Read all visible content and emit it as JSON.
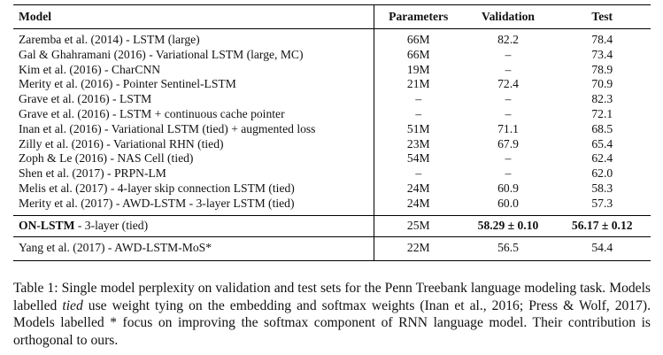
{
  "table": {
    "header": [
      "Model",
      "Parameters",
      "Validation",
      "Test"
    ],
    "rows": [
      [
        "Zaremba et al. (2014) - LSTM (large)",
        "66M",
        "82.2",
        "78.4"
      ],
      [
        "Gal & Ghahramani (2016) - Variational LSTM (large, MC)",
        "66M",
        "–",
        "73.4"
      ],
      [
        "Kim et al. (2016) - CharCNN",
        "19M",
        "–",
        "78.9"
      ],
      [
        "Merity et al. (2016) - Pointer Sentinel-LSTM",
        "21M",
        "72.4",
        "70.9"
      ],
      [
        "Grave et al. (2016) - LSTM",
        "–",
        "–",
        "82.3"
      ],
      [
        "Grave et al. (2016) - LSTM + continuous cache pointer",
        "–",
        "–",
        "72.1"
      ],
      [
        "Inan et al. (2016) - Variational LSTM (tied) + augmented loss",
        "51M",
        "71.1",
        "68.5"
      ],
      [
        "Zilly et al. (2016) - Variational RHN (tied)",
        "23M",
        "67.9",
        "65.4"
      ],
      [
        "Zoph & Le (2016) - NAS Cell (tied)",
        "54M",
        "–",
        "62.4"
      ],
      [
        "Shen et al. (2017) - PRPN-LM",
        "–",
        "–",
        "62.0"
      ],
      [
        "Melis et al. (2017) - 4-layer skip connection LSTM (tied)",
        "24M",
        "60.9",
        "58.3"
      ],
      [
        "Merity et al. (2017) - AWD-LSTM - 3-layer LSTM (tied)",
        "24M",
        "60.0",
        "57.3"
      ]
    ],
    "ours": {
      "model_bold": "ON-LSTM",
      "model_rest": " - 3-layer (tied)",
      "parameters": "25M",
      "validation": "58.29 ± 0.10",
      "test": "56.17 ± 0.12"
    },
    "other": [
      "Yang et al. (2017) - AWD-LSTM-MoS*",
      "22M",
      "56.5",
      "54.4"
    ]
  },
  "caption": {
    "part1": "Table 1: Single model perplexity on validation and test sets for the Penn Treebank language modeling task. Models labelled ",
    "italic": "tied",
    "part2": " use weight tying on the embedding and softmax weights (Inan et al., 2016; Press & Wolf, 2017). Models labelled * focus on improving the softmax component of RNN language model. Their contribution is orthogonal to ours."
  }
}
